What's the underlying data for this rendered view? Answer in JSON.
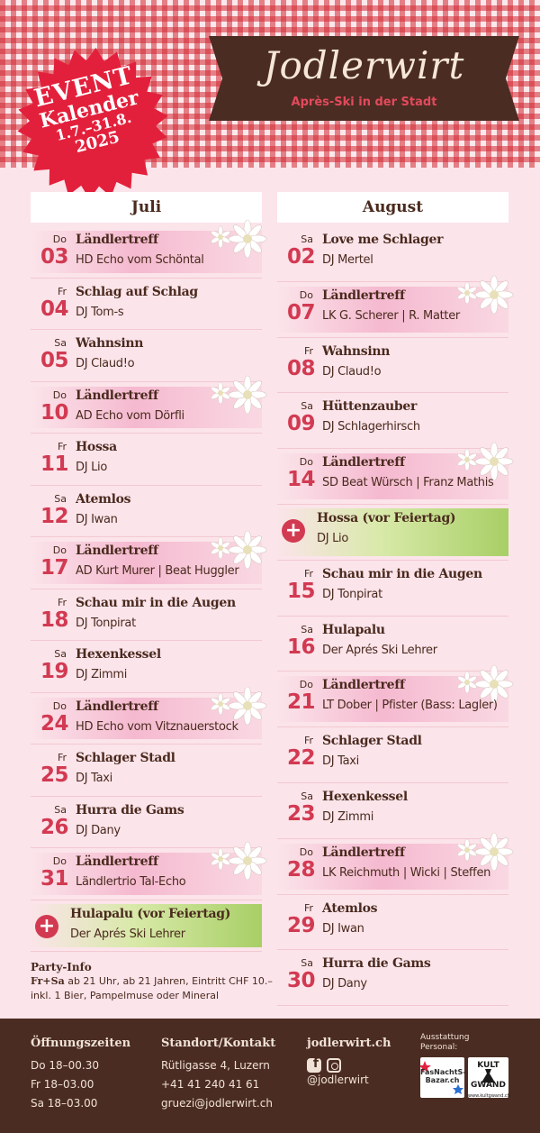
{
  "header": {
    "badge": {
      "line1": "EVENT",
      "line2": "Kalender",
      "line3": "1.7.–31.8.",
      "line4": "2025",
      "color": "#e3203c"
    },
    "logo": {
      "title": "Jodlerwirt",
      "subtitle": "Après-Ski in der Stadt",
      "bg_color": "#4b2c22"
    }
  },
  "july": {
    "month": "Juli",
    "events": [
      {
        "day": "Do",
        "date": "03",
        "title": "Ländlertreff",
        "sub": "HD Echo vom Schöntal",
        "type": "highlight",
        "flower": true
      },
      {
        "day": "Fr",
        "date": "04",
        "title": "Schlag auf Schlag",
        "sub": "DJ Tom-s",
        "type": "normal"
      },
      {
        "day": "Sa",
        "date": "05",
        "title": "Wahnsinn",
        "sub": "DJ Claud!o",
        "type": "normal"
      },
      {
        "day": "Do",
        "date": "10",
        "title": "Ländlertreff",
        "sub": "AD Echo vom Dörfli",
        "type": "highlight",
        "flower": true
      },
      {
        "day": "Fr",
        "date": "11",
        "title": "Hossa",
        "sub": "DJ Lio",
        "type": "normal"
      },
      {
        "day": "Sa",
        "date": "12",
        "title": "Atemlos",
        "sub": "DJ Iwan",
        "type": "normal"
      },
      {
        "day": "Do",
        "date": "17",
        "title": "Ländlertreff",
        "sub": "AD Kurt Murer | Beat Huggler",
        "type": "highlight",
        "flower": true
      },
      {
        "day": "Fr",
        "date": "18",
        "title": "Schau mir in die Augen",
        "sub": "DJ Tonpirat",
        "type": "normal"
      },
      {
        "day": "Sa",
        "date": "19",
        "title": "Hexenkessel",
        "sub": "DJ Zimmi",
        "type": "normal"
      },
      {
        "day": "Do",
        "date": "24",
        "title": "Ländlertreff",
        "sub": "HD Echo vom Vitznauerstock",
        "type": "highlight",
        "flower": true
      },
      {
        "day": "Fr",
        "date": "25",
        "title": "Schlager Stadl",
        "sub": "DJ Taxi",
        "type": "normal"
      },
      {
        "day": "Sa",
        "date": "26",
        "title": "Hurra die Gams",
        "sub": "DJ Dany",
        "type": "normal"
      },
      {
        "day": "Do",
        "date": "31",
        "title": "Ländlertreff",
        "sub": "Ländlertrio Tal-Echo",
        "type": "highlight",
        "flower": true
      },
      {
        "day": "",
        "date": "",
        "title": "Hulapalu (vor Feiertag)",
        "sub": "Der Aprés Ski Lehrer",
        "type": "holiday"
      }
    ]
  },
  "august": {
    "month": "August",
    "events": [
      {
        "day": "Sa",
        "date": "02",
        "title": "Love me Schlager",
        "sub": "DJ Mertel",
        "type": "normal"
      },
      {
        "day": "Do",
        "date": "07",
        "title": "Ländlertreff",
        "sub": "LK G. Scherer | R. Matter",
        "type": "highlight",
        "flower": true
      },
      {
        "day": "Fr",
        "date": "08",
        "title": "Wahnsinn",
        "sub": "DJ Claud!o",
        "type": "normal"
      },
      {
        "day": "Sa",
        "date": "09",
        "title": "Hüttenzauber",
        "sub": "DJ Schlagerhirsch",
        "type": "normal"
      },
      {
        "day": "Do",
        "date": "14",
        "title": "Ländlertreff",
        "sub": "SD Beat Würsch | Franz Mathis",
        "type": "highlight",
        "flower": true
      },
      {
        "day": "",
        "date": "",
        "title": "Hossa (vor Feiertag)",
        "sub": "DJ Lio",
        "type": "holiday"
      },
      {
        "day": "Fr",
        "date": "15",
        "title": "Schau mir in die Augen",
        "sub": "DJ Tonpirat",
        "type": "normal"
      },
      {
        "day": "Sa",
        "date": "16",
        "title": "Hulapalu",
        "sub": "Der Aprés Ski Lehrer",
        "type": "normal"
      },
      {
        "day": "Do",
        "date": "21",
        "title": "Ländlertreff",
        "sub": "LT Dober | Pfister (Bass: Lagler)",
        "type": "highlight",
        "flower": true
      },
      {
        "day": "Fr",
        "date": "22",
        "title": "Schlager Stadl",
        "sub": "DJ Taxi",
        "type": "normal"
      },
      {
        "day": "Sa",
        "date": "23",
        "title": "Hexenkessel",
        "sub": "DJ Zimmi",
        "type": "normal"
      },
      {
        "day": "Do",
        "date": "28",
        "title": "Ländlertreff",
        "sub": "LK Reichmuth | Wicki | Steffen",
        "type": "highlight",
        "flower": true
      },
      {
        "day": "Fr",
        "date": "29",
        "title": "Atemlos",
        "sub": "DJ Iwan",
        "type": "normal"
      },
      {
        "day": "Sa",
        "date": "30",
        "title": "Hurra die Gams",
        "sub": "DJ Dany",
        "type": "normal"
      }
    ]
  },
  "party_info": {
    "heading": "Party-Info",
    "label": "Fr+Sa",
    "text1": " ab 21 Uhr, ab 21 Jahren, Eintritt CHF 10.–",
    "text2": "inkl. 1 Bier, Pampelmuse oder Mineral"
  },
  "footer": {
    "hours": {
      "heading": "Öffnungszeiten",
      "lines": [
        "Do 18–00.30",
        "Fr  18–03.00",
        "Sa  18–03.00"
      ]
    },
    "contact": {
      "heading": "Standort/Kontakt",
      "lines": [
        "Rütligasse 4, Luzern",
        "+41 41 240 41 61",
        "gruezi@jodlerwirt.ch"
      ]
    },
    "web": {
      "heading": "jodlerwirt.ch",
      "handle": "@jodlerwirt",
      "icons": [
        "facebook-icon",
        "instagram-icon"
      ]
    },
    "sponsors": {
      "label1": "Ausstattung",
      "label2": "Personal:",
      "sponsor1": "FasNachtS-Bazar.ch",
      "sponsor2_line1": "KULT",
      "sponsor2_line2": "GWAND",
      "sponsor2_small": "www.kultgwand.ch"
    }
  }
}
